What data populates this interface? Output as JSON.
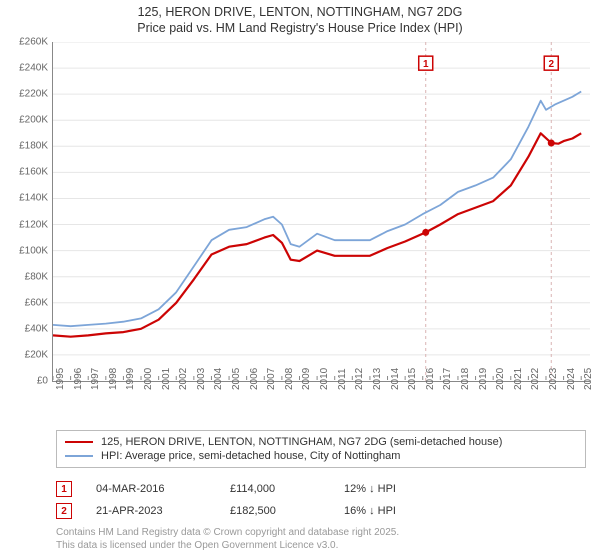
{
  "title_line1": "125, HERON DRIVE, LENTON, NOTTINGHAM, NG7 2DG",
  "title_line2": "Price paid vs. HM Land Registry's House Price Index (HPI)",
  "chart": {
    "type": "line",
    "background_color": "#ffffff",
    "grid_color": "#e6e6e6",
    "axis_color": "#888888",
    "tick_fontsize": 10,
    "tick_color": "#666666",
    "ylim": [
      0,
      260000
    ],
    "yticks": [
      0,
      20000,
      40000,
      60000,
      80000,
      100000,
      120000,
      140000,
      160000,
      180000,
      200000,
      220000,
      240000,
      260000
    ],
    "ytick_labels": [
      "£0",
      "£20K",
      "£40K",
      "£60K",
      "£80K",
      "£100K",
      "£120K",
      "£140K",
      "£160K",
      "£180K",
      "£200K",
      "£220K",
      "£240K",
      "£260K"
    ],
    "xlim": [
      1995,
      2025.5
    ],
    "xticks": [
      1995,
      1996,
      1997,
      1998,
      1999,
      2000,
      2001,
      2002,
      2003,
      2004,
      2005,
      2006,
      2007,
      2008,
      2009,
      2010,
      2011,
      2012,
      2013,
      2014,
      2015,
      2016,
      2017,
      2018,
      2019,
      2020,
      2021,
      2022,
      2023,
      2024,
      2025
    ],
    "series": [
      {
        "name": "price_paid",
        "label": "125, HERON DRIVE, LENTON, NOTTINGHAM, NG7 2DG (semi-detached house)",
        "color": "#cc0404",
        "width": 2.2,
        "data": [
          [
            1995,
            35000
          ],
          [
            1996,
            34000
          ],
          [
            1997,
            35000
          ],
          [
            1998,
            36500
          ],
          [
            1999,
            37500
          ],
          [
            2000,
            40000
          ],
          [
            2001,
            47000
          ],
          [
            2002,
            60000
          ],
          [
            2003,
            78000
          ],
          [
            2004,
            97000
          ],
          [
            2005,
            103000
          ],
          [
            2006,
            105000
          ],
          [
            2007,
            110000
          ],
          [
            2007.5,
            112000
          ],
          [
            2008,
            106000
          ],
          [
            2008.5,
            93000
          ],
          [
            2009,
            92000
          ],
          [
            2010,
            100000
          ],
          [
            2011,
            96000
          ],
          [
            2012,
            96000
          ],
          [
            2013,
            96000
          ],
          [
            2014,
            102000
          ],
          [
            2015,
            107000
          ],
          [
            2016.17,
            114000
          ],
          [
            2017,
            120000
          ],
          [
            2018,
            128000
          ],
          [
            2019,
            133000
          ],
          [
            2020,
            138000
          ],
          [
            2021,
            150000
          ],
          [
            2022,
            172000
          ],
          [
            2022.7,
            190000
          ],
          [
            2023.3,
            182500
          ],
          [
            2023.7,
            182000
          ],
          [
            2024,
            184000
          ],
          [
            2024.5,
            186000
          ],
          [
            2025,
            190000
          ]
        ]
      },
      {
        "name": "hpi",
        "label": "HPI: Average price, semi-detached house, City of Nottingham",
        "color": "#7da5d8",
        "width": 1.8,
        "data": [
          [
            1995,
            43000
          ],
          [
            1996,
            42000
          ],
          [
            1997,
            43000
          ],
          [
            1998,
            44000
          ],
          [
            1999,
            45500
          ],
          [
            2000,
            48000
          ],
          [
            2001,
            55000
          ],
          [
            2002,
            68000
          ],
          [
            2003,
            88000
          ],
          [
            2004,
            108000
          ],
          [
            2005,
            116000
          ],
          [
            2006,
            118000
          ],
          [
            2007,
            124000
          ],
          [
            2007.5,
            126000
          ],
          [
            2008,
            120000
          ],
          [
            2008.5,
            105000
          ],
          [
            2009,
            103000
          ],
          [
            2010,
            113000
          ],
          [
            2011,
            108000
          ],
          [
            2012,
            108000
          ],
          [
            2013,
            108000
          ],
          [
            2014,
            115000
          ],
          [
            2015,
            120000
          ],
          [
            2016,
            128000
          ],
          [
            2017,
            135000
          ],
          [
            2018,
            145000
          ],
          [
            2019,
            150000
          ],
          [
            2020,
            156000
          ],
          [
            2021,
            170000
          ],
          [
            2022,
            195000
          ],
          [
            2022.7,
            215000
          ],
          [
            2023,
            208000
          ],
          [
            2023.5,
            212000
          ],
          [
            2024,
            215000
          ],
          [
            2024.5,
            218000
          ],
          [
            2025,
            222000
          ]
        ]
      }
    ],
    "markers": [
      {
        "n": "1",
        "x": 2016.17,
        "y": 114000,
        "color": "#cc0404",
        "label_y": 243000
      },
      {
        "n": "2",
        "x": 2023.3,
        "y": 182500,
        "color": "#cc0404",
        "label_y": 243000
      }
    ],
    "marker_line_color": "#d9b3b3"
  },
  "legend": {
    "rows": [
      {
        "color": "#cc0404",
        "label": "125, HERON DRIVE, LENTON, NOTTINGHAM, NG7 2DG (semi-detached house)"
      },
      {
        "color": "#7da5d8",
        "label": "HPI: Average price, semi-detached house, City of Nottingham"
      }
    ]
  },
  "sales": [
    {
      "n": "1",
      "box_color": "#cc0404",
      "date": "04-MAR-2016",
      "price": "£114,000",
      "diff": "12% ↓ HPI"
    },
    {
      "n": "2",
      "box_color": "#cc0404",
      "date": "21-APR-2023",
      "price": "£182,500",
      "diff": "16% ↓ HPI"
    }
  ],
  "footer_line1": "Contains HM Land Registry data © Crown copyright and database right 2025.",
  "footer_line2": "This data is licensed under the Open Government Licence v3.0."
}
